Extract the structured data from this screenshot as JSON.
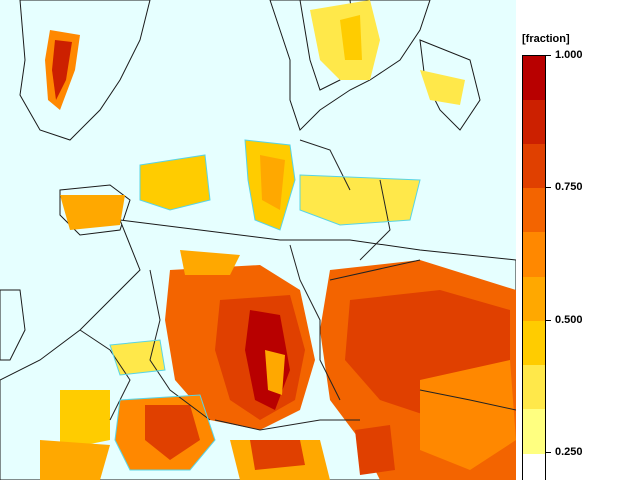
{
  "legend": {
    "title": "[fraction]",
    "ticks": [
      {
        "label": "1.000",
        "value": 1.0
      },
      {
        "label": "0.750",
        "value": 0.75
      },
      {
        "label": "0.500",
        "value": 0.5
      },
      {
        "label": "0.250",
        "value": 0.25
      }
    ],
    "colors": [
      "#ffff80",
      "#ffe84a",
      "#ffcc00",
      "#ffa800",
      "#ff8800",
      "#f36400",
      "#e04000",
      "#cc2000",
      "#b80000"
    ]
  },
  "map": {
    "sea_color": "#e6ffff",
    "coast_color": "#59d4e4",
    "border_color": "#222222"
  }
}
